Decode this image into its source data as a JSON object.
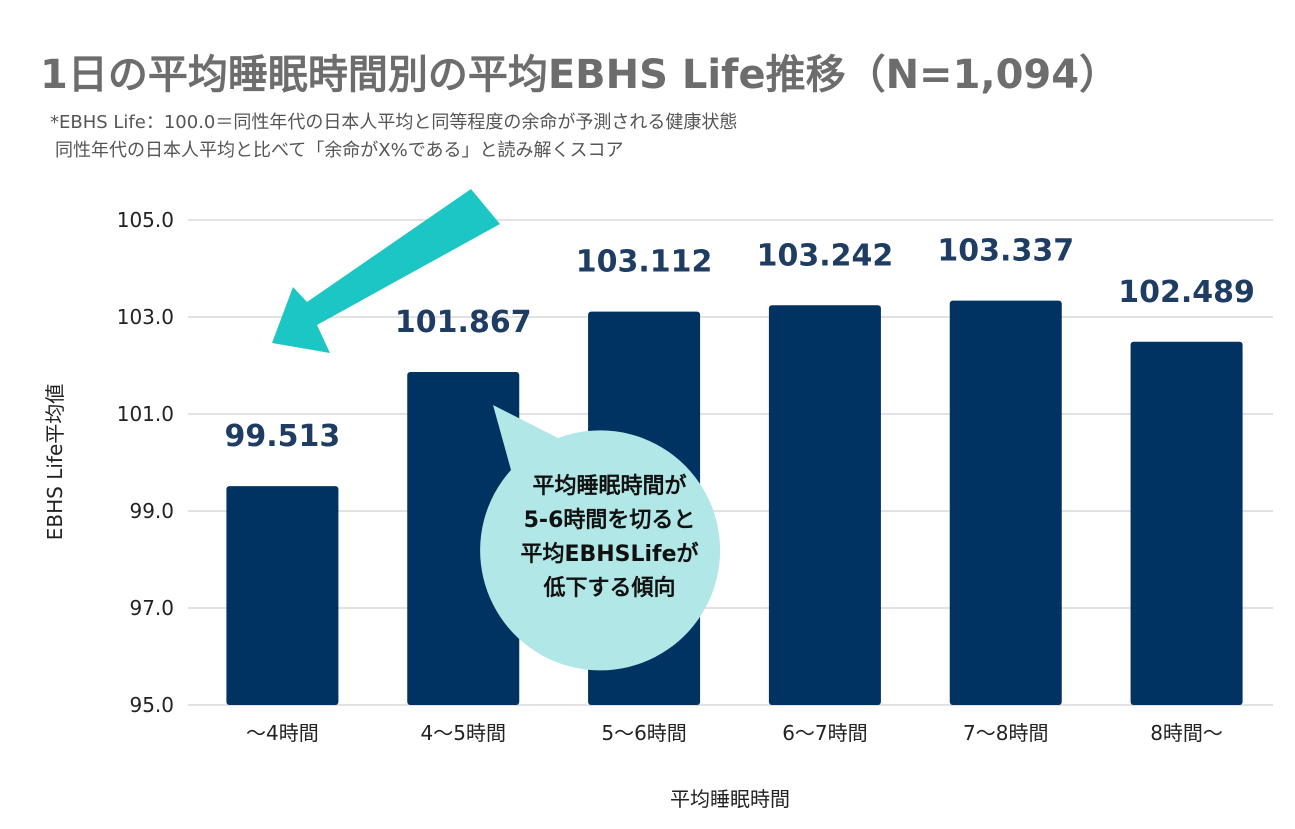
{
  "title": "1日の平均睡眠時間別の平均EBHS Life推移（N=1,094）",
  "notes": [
    "*EBHS Life：100.0＝同性年代の日本人平均と同等程度の余命が予測される健康状態",
    "同性年代の日本人平均と比べて「余命がX%である」と読み解くスコア"
  ],
  "callout": {
    "lines": [
      "平均睡眠時間が",
      "5-6時間を切ると",
      "平均EBHSLifeが",
      "低下する傾向"
    ]
  },
  "colors": {
    "bar": "#003262",
    "data_label": "#1f3d63",
    "arrow": "#1cc6c4",
    "bubble": "#b2e7e7",
    "grid": "#d9d9d9"
  },
  "chart_data": {
    "type": "bar",
    "categories": [
      "～4時間",
      "4～5時間",
      "5～6時間",
      "6～7時間",
      "7～8時間",
      "8時間～"
    ],
    "values": [
      99.513,
      101.867,
      103.112,
      103.242,
      103.337,
      102.489
    ],
    "data_labels": [
      "99.513",
      "101.867",
      "103.112",
      "103.242",
      "103.337",
      "102.489"
    ],
    "yticks": [
      "95.0",
      "97.0",
      "99.0",
      "101.0",
      "103.0",
      "105.0"
    ],
    "ylim": [
      95,
      105
    ],
    "xlabel": "平均睡眠時間",
    "ylabel": "EBHS Life平均値",
    "grid": true
  }
}
